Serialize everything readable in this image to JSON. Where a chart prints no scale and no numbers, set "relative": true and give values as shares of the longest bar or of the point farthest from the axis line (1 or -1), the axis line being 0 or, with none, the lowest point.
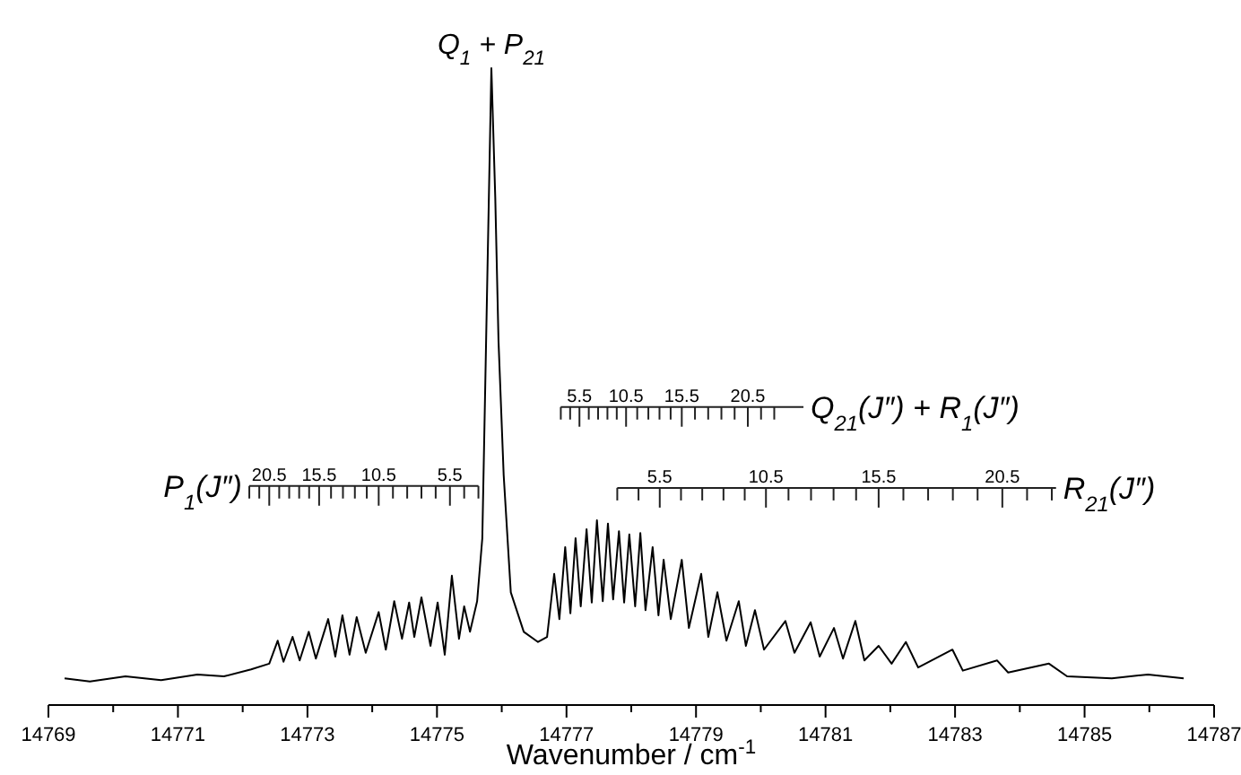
{
  "chart_data": {
    "type": "line",
    "relative": true,
    "xlabel": "Wavenumber / cm$^{-1}$",
    "xlim": [
      14769,
      14787
    ],
    "xticks": [
      14769,
      {
        "value": 14770,
        "label": null
      },
      14771,
      {
        "value": 14772,
        "label": null
      },
      14773,
      {
        "value": 14774,
        "label": null
      },
      14775,
      {
        "value": 14776,
        "label": null
      },
      14777,
      {
        "value": 14778,
        "label": null
      },
      14779,
      {
        "value": 14780,
        "label": null
      },
      14781,
      {
        "value": 14782,
        "label": null
      },
      14783,
      {
        "value": 14784,
        "label": null
      },
      14785,
      {
        "value": 14786,
        "label": null
      },
      14787
    ],
    "grid": false,
    "marker": "none",
    "line_style": "solid",
    "x": [
      14769.25,
      14769.64,
      14770.19,
      14770.74,
      14771.3,
      14771.71,
      14772.13,
      14772.41,
      14772.54,
      14772.63,
      14772.77,
      14772.88,
      14773.02,
      14773.13,
      14773.32,
      14773.43,
      14773.54,
      14773.65,
      14773.76,
      14773.9,
      14774.1,
      14774.21,
      14774.34,
      14774.46,
      14774.57,
      14774.65,
      14774.76,
      14774.9,
      14775.01,
      14775.12,
      14775.23,
      14775.34,
      14775.42,
      14775.51,
      14775.62,
      14775.7,
      14775.78,
      14775.84,
      14775.9,
      14775.95,
      14776.03,
      14776.14,
      14776.34,
      14776.56,
      14776.7,
      14776.81,
      14776.89,
      14776.98,
      14777.06,
      14777.14,
      14777.22,
      14777.31,
      14777.39,
      14777.47,
      14777.56,
      14777.64,
      14777.72,
      14777.81,
      14777.89,
      14777.97,
      14778.06,
      14778.14,
      14778.22,
      14778.33,
      14778.42,
      14778.5,
      14778.61,
      14778.78,
      14778.89,
      14779.08,
      14779.19,
      14779.33,
      14779.47,
      14779.66,
      14779.77,
      14779.91,
      14780.05,
      14780.38,
      14780.52,
      14780.77,
      14780.91,
      14781.13,
      14781.27,
      14781.46,
      14781.6,
      14781.82,
      14782.02,
      14782.24,
      14782.43,
      14782.96,
      14783.12,
      14783.65,
      14783.82,
      14784.45,
      14784.73,
      14785.42,
      14785.98,
      14786.53
    ],
    "series": [
      {
        "color": "#000000",
        "values": [
          0.042,
          0.037,
          0.045,
          0.039,
          0.048,
          0.045,
          0.056,
          0.065,
          0.101,
          0.068,
          0.107,
          0.07,
          0.115,
          0.073,
          0.135,
          0.076,
          0.141,
          0.079,
          0.138,
          0.082,
          0.146,
          0.087,
          0.163,
          0.104,
          0.161,
          0.107,
          0.169,
          0.093,
          0.161,
          0.079,
          0.203,
          0.104,
          0.155,
          0.115,
          0.163,
          0.262,
          0.685,
          1,
          0.797,
          0.572,
          0.361,
          0.177,
          0.115,
          0.099,
          0.107,
          0.206,
          0.135,
          0.248,
          0.144,
          0.262,
          0.155,
          0.276,
          0.161,
          0.29,
          0.163,
          0.285,
          0.166,
          0.273,
          0.161,
          0.268,
          0.155,
          0.27,
          0.149,
          0.248,
          0.141,
          0.228,
          0.135,
          0.228,
          0.121,
          0.206,
          0.107,
          0.177,
          0.101,
          0.163,
          0.093,
          0.149,
          0.087,
          0.132,
          0.082,
          0.13,
          0.076,
          0.121,
          0.073,
          0.132,
          0.07,
          0.093,
          0.065,
          0.099,
          0.059,
          0.087,
          0.054,
          0.07,
          0.051,
          0.065,
          0.045,
          0.042,
          0.048,
          0.042
        ]
      }
    ],
    "annotations": [
      {
        "text": "Q$_{1}$ + P$_{21}$",
        "x": 14775.84,
        "y": 1
      },
      "P$_{1}$(J″)",
      "20.5",
      "15.5",
      "10.5",
      "5.5",
      "Q$_{21}$(J″) + R$_{1}$(J″)",
      "5.5",
      "10.5",
      "15.5",
      "20.5",
      "R$_{21}$(J″)",
      "5.5",
      "10.5",
      "15.5",
      "20.5"
    ]
  }
}
